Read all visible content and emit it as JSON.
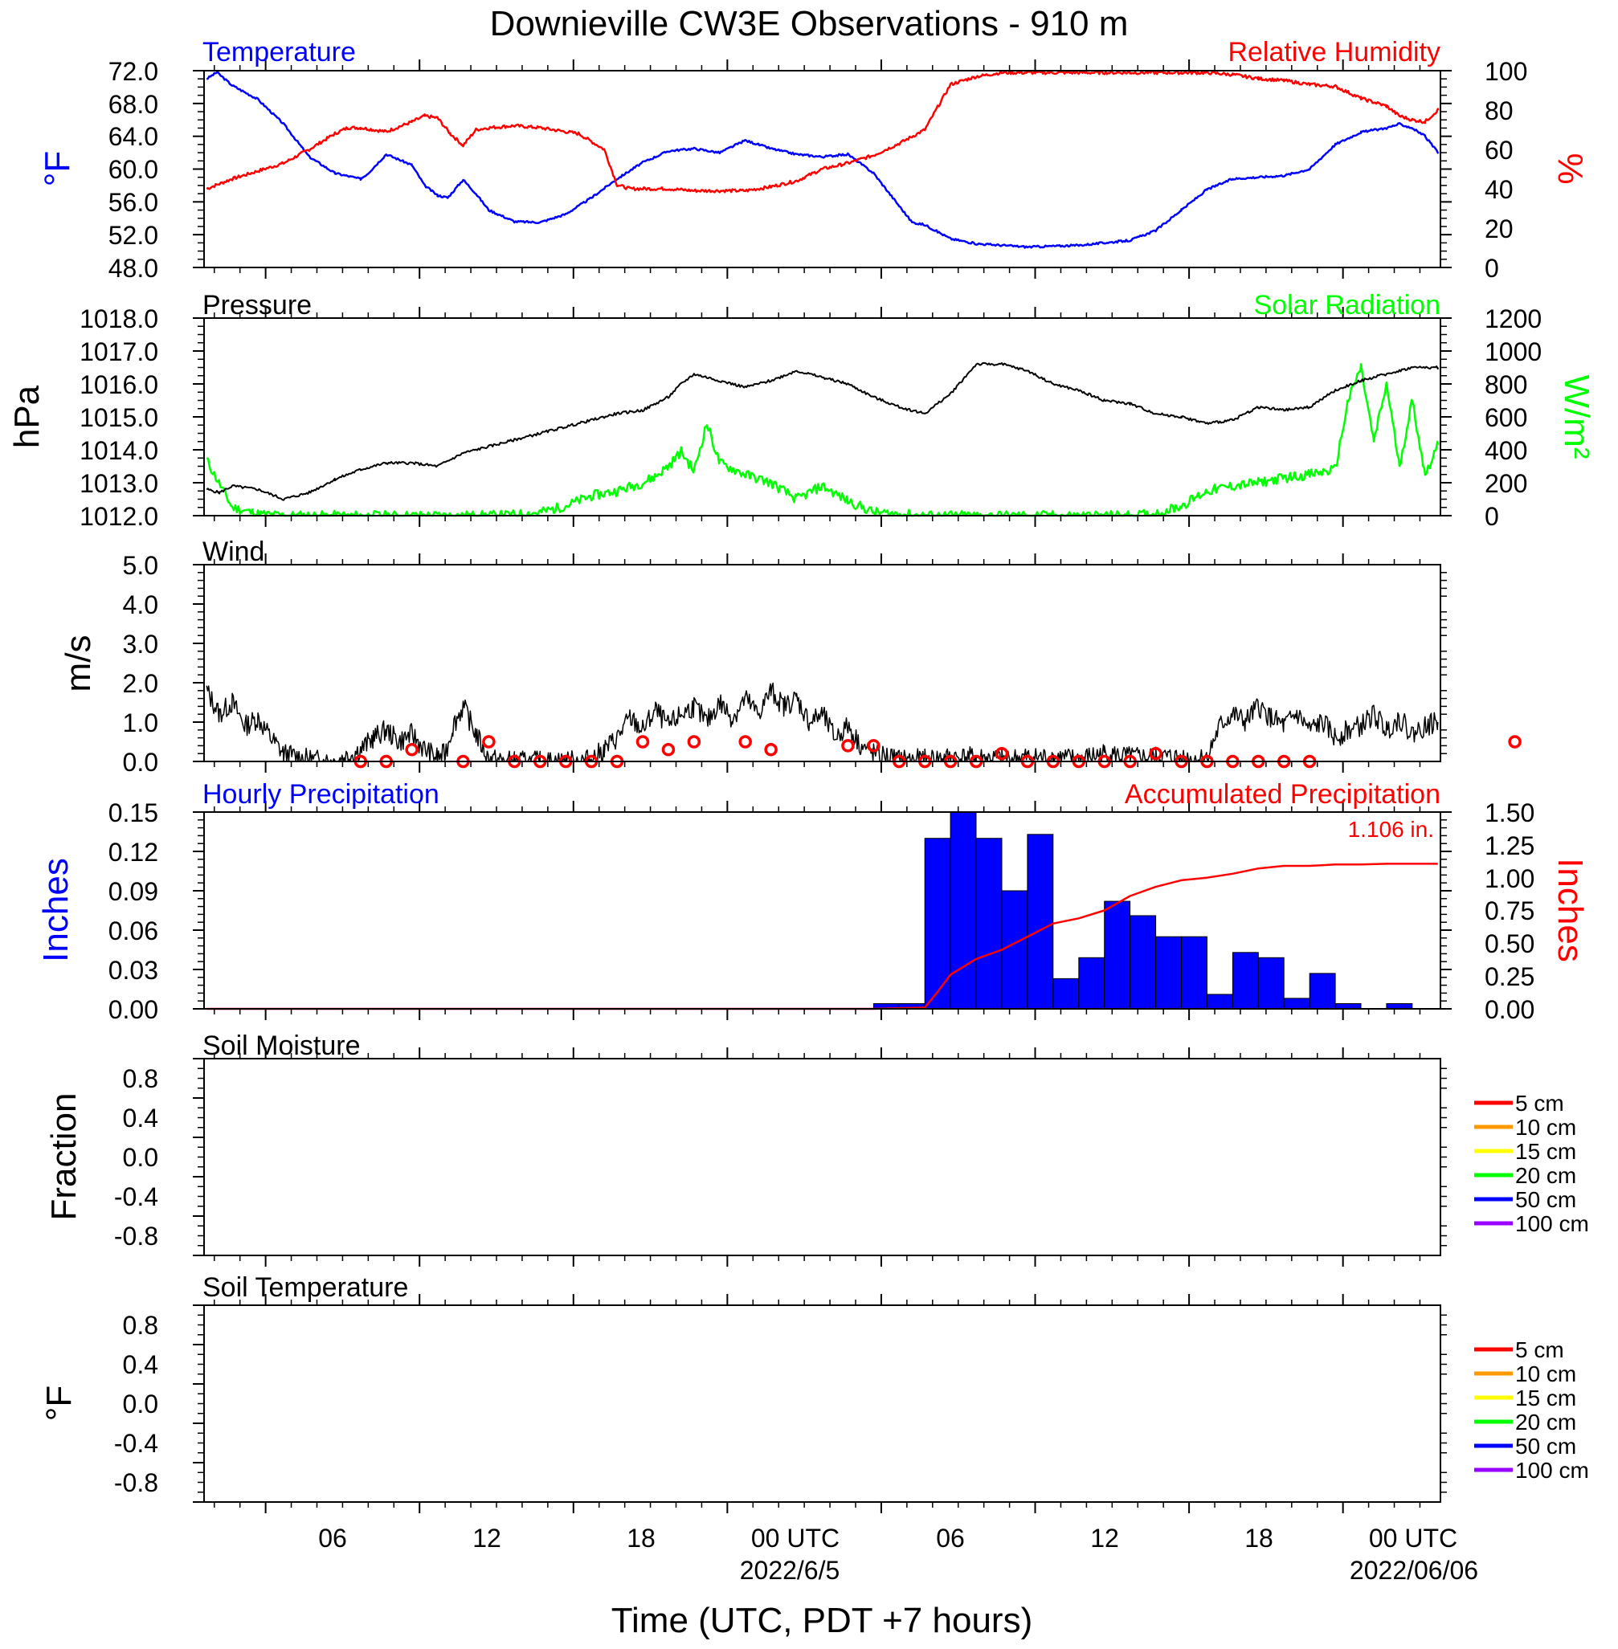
{
  "title": "Downieville CW3E Observations - 910 m",
  "xlabel": "Time (UTC, PDT +7 hours)",
  "x_ticks": [
    "06",
    "12",
    "18",
    "00 UTC",
    "06",
    "12",
    "18",
    "00 UTC"
  ],
  "x_dates": [
    "2022/6/5",
    "2022/06/06"
  ],
  "colors": {
    "temperature": "#0000ff",
    "humidity": "#ff0000",
    "pressure": "#000000",
    "solar": "#00ff00",
    "wind": "#000000",
    "wind_barb": "#ff0000",
    "precip_bar": "#0000ff",
    "accum": "#ff0000"
  },
  "soil_legend_colors": [
    "#ff0000",
    "#ff9900",
    "#ffff00",
    "#00ff00",
    "#0000ff",
    "#9900ff"
  ],
  "panels": {
    "temp": {
      "left_title": "Temperature",
      "right_title": "Relative Humidity",
      "left_unit": "°F",
      "right_unit": "%",
      "left_ticks": [
        "72.0",
        "68.0",
        "64.0",
        "60.0",
        "56.0",
        "52.0",
        "48.0"
      ],
      "right_ticks": [
        "100",
        "80",
        "60",
        "40",
        "20",
        "0"
      ]
    },
    "pressure": {
      "left_title": "Pressure",
      "right_title": "Solar Radiation",
      "left_unit": "hPa",
      "right_unit": "W/m²",
      "left_ticks": [
        "1018.0",
        "1017.0",
        "1016.0",
        "1015.0",
        "1014.0",
        "1013.0",
        "1012.0"
      ],
      "right_ticks": [
        "1200",
        "1000",
        "800",
        "600",
        "400",
        "200",
        "0"
      ]
    },
    "wind": {
      "left_title": "Wind",
      "left_unit": "m/s",
      "left_ticks": [
        "5.0",
        "4.0",
        "3.0",
        "2.0",
        "1.0",
        "0.0"
      ]
    },
    "precip": {
      "left_title": "Hourly Precipitation",
      "right_title": "Accumulated Precipitation",
      "left_unit": "Inches",
      "right_unit": "Inches",
      "annotation": "1.106 in.",
      "left_ticks": [
        "0.15",
        "0.12",
        "0.09",
        "0.06",
        "0.03",
        "0.00"
      ],
      "right_ticks": [
        "1.50",
        "1.25",
        "1.00",
        "0.75",
        "0.50",
        "0.25",
        "0.00"
      ]
    },
    "soil_moisture": {
      "left_title": "Soil Moisture",
      "left_unit": "Fraction",
      "left_ticks": [
        "0.8",
        "0.4",
        "0.0",
        "-0.4",
        "-0.8"
      ],
      "legend": [
        "5 cm",
        "10 cm",
        "15 cm",
        "20 cm",
        "50 cm",
        "100 cm"
      ]
    },
    "soil_temp": {
      "left_title": "Soil Temperature",
      "left_unit": "°F",
      "left_ticks": [
        "0.8",
        "0.4",
        "0.0",
        "-0.4",
        "-0.8"
      ],
      "legend": [
        "5 cm",
        "10 cm",
        "15 cm",
        "20 cm",
        "50 cm",
        "100 cm"
      ]
    }
  },
  "chart_data": [
    {
      "type": "line",
      "panel": "temp",
      "title": "Temperature / Relative Humidity",
      "x_unit": "hours since 2022-06-04 00 UTC",
      "xlim": [
        0,
        48
      ],
      "ylim_left": [
        48,
        72
      ],
      "ylim_right": [
        0,
        100
      ],
      "series": [
        {
          "name": "Temperature",
          "axis": "left",
          "unit": "°F",
          "x": [
            0,
            0.4,
            1,
            2,
            3,
            4,
            5,
            6,
            6.3,
            7,
            8,
            8.5,
            9,
            9.4,
            10,
            10.5,
            11,
            12,
            13,
            14,
            15,
            16,
            17,
            18,
            19,
            20,
            21,
            22,
            23,
            24,
            25,
            26,
            27,
            27.5,
            28,
            29,
            30,
            31,
            32,
            33,
            34,
            35,
            36,
            37,
            38,
            39,
            40,
            41,
            42,
            43,
            44,
            45,
            46,
            46.5,
            47,
            47.5,
            48
          ],
          "values": [
            71.0,
            71.8,
            70.2,
            68.5,
            65.5,
            61.5,
            59.5,
            58.8,
            59.5,
            61.8,
            60.5,
            58.0,
            56.8,
            56.5,
            58.7,
            57.0,
            55.0,
            53.6,
            53.5,
            54.5,
            56.5,
            58.8,
            60.8,
            62.2,
            62.5,
            62.0,
            63.5,
            62.5,
            61.8,
            61.5,
            61.8,
            59.5,
            55.5,
            53.5,
            53.2,
            51.5,
            50.9,
            50.7,
            50.5,
            50.6,
            50.7,
            51.0,
            51.3,
            52.5,
            55.0,
            57.5,
            58.8,
            59.0,
            59.2,
            60.0,
            63.0,
            64.5,
            65.0,
            65.5,
            65.0,
            64.0,
            62.0
          ]
        },
        {
          "name": "Relative Humidity",
          "axis": "right",
          "unit": "%",
          "x": [
            0,
            1,
            2,
            3,
            4,
            5,
            5.5,
            6,
            7,
            8,
            8.5,
            9,
            9.5,
            10,
            10.5,
            11,
            12,
            13,
            14,
            14.5,
            15,
            15.5,
            16,
            16.5,
            17,
            18,
            19,
            20,
            21,
            22,
            23,
            24,
            25,
            26,
            27,
            28,
            29,
            30,
            31,
            32,
            33,
            34,
            35,
            36,
            37,
            38,
            39,
            40,
            41,
            42,
            43,
            44,
            45,
            46,
            46.5,
            47,
            47.5,
            48
          ],
          "values": [
            40,
            45,
            49,
            53,
            60,
            68,
            71,
            71,
            69,
            74,
            77,
            76,
            68,
            62,
            70,
            71,
            72,
            71,
            69,
            68,
            64,
            60,
            42,
            40,
            40,
            40,
            39,
            39,
            39,
            41,
            44,
            50,
            53,
            57,
            63,
            70,
            93,
            97,
            99,
            99,
            99,
            99,
            99,
            99,
            99,
            99,
            99,
            98,
            96,
            95,
            93,
            92,
            86,
            82,
            77,
            75,
            74,
            80
          ]
        }
      ]
    },
    {
      "type": "line",
      "panel": "pressure",
      "title": "Pressure / Solar Radiation",
      "x_unit": "hours since 2022-06-04 00 UTC",
      "xlim": [
        0,
        48
      ],
      "ylim_left": [
        1012,
        1018
      ],
      "ylim_right": [
        0,
        1200
      ],
      "series": [
        {
          "name": "Pressure",
          "axis": "left",
          "unit": "hPa",
          "x": [
            0,
            0.5,
            1,
            2,
            3,
            4,
            5,
            6,
            7,
            8,
            9,
            10,
            11,
            12,
            13,
            14,
            15,
            16,
            17,
            18,
            18.5,
            19,
            20,
            21,
            22,
            23,
            24,
            25,
            26,
            27,
            28,
            29,
            30,
            31,
            32,
            33,
            34,
            35,
            36,
            37,
            38,
            39,
            40,
            41,
            42,
            43,
            44,
            45,
            46,
            47,
            48
          ],
          "values": [
            1012.8,
            1012.7,
            1012.9,
            1012.8,
            1012.5,
            1012.7,
            1013.1,
            1013.4,
            1013.6,
            1013.6,
            1013.5,
            1013.9,
            1014.1,
            1014.3,
            1014.5,
            1014.7,
            1014.9,
            1015.1,
            1015.2,
            1015.6,
            1016.0,
            1016.3,
            1016.1,
            1015.9,
            1016.1,
            1016.4,
            1016.2,
            1016.0,
            1015.6,
            1015.3,
            1015.1,
            1015.7,
            1016.6,
            1016.6,
            1016.4,
            1016.0,
            1015.8,
            1015.5,
            1015.4,
            1015.1,
            1015.0,
            1014.8,
            1014.9,
            1015.3,
            1015.2,
            1015.3,
            1015.8,
            1016.1,
            1016.3,
            1016.5,
            1016.5
          ]
        },
        {
          "name": "Solar Radiation",
          "axis": "right",
          "unit": "W/m²",
          "x": [
            0,
            0.3,
            1,
            2,
            3,
            11,
            12,
            13,
            14,
            15,
            16,
            17,
            17.5,
            18,
            18.5,
            19,
            19.5,
            20,
            21,
            22,
            23,
            24,
            25,
            26,
            28,
            36,
            37,
            38,
            39,
            40,
            41,
            42,
            43,
            44,
            44.5,
            45,
            45.5,
            46,
            46.5,
            47,
            47.5,
            48
          ],
          "values": [
            340,
            250,
            50,
            10,
            0,
            0,
            5,
            20,
            60,
            120,
            150,
            200,
            240,
            300,
            390,
            270,
            560,
            320,
            250,
            200,
            100,
            180,
            90,
            20,
            0,
            0,
            10,
            60,
            150,
            180,
            200,
            230,
            250,
            280,
            700,
            900,
            450,
            800,
            300,
            700,
            250,
            430
          ]
        }
      ]
    },
    {
      "type": "line",
      "panel": "wind",
      "title": "Wind",
      "x_unit": "hours since 2022-06-04 00 UTC",
      "xlim": [
        0,
        48
      ],
      "ylim": [
        0,
        5
      ],
      "series": [
        {
          "name": "Wind Speed",
          "unit": "m/s",
          "x": [
            0,
            0.5,
            1,
            1.5,
            2,
            2.5,
            3,
            4,
            5,
            6,
            6.5,
            7,
            7.5,
            8,
            8.5,
            9,
            9.3,
            9.6,
            10,
            10.5,
            11,
            12,
            13,
            14,
            15,
            15.5,
            16,
            16.5,
            17,
            17.5,
            18,
            18.5,
            19,
            19.5,
            20,
            20.5,
            21,
            21.5,
            22,
            22.5,
            23,
            23.5,
            24,
            24.5,
            25,
            25.5,
            26,
            27,
            28,
            29,
            30,
            31,
            32,
            33,
            34,
            35,
            36,
            37,
            38,
            38.5,
            39,
            39.5,
            40,
            40.5,
            41,
            41.5,
            42,
            42.5,
            43,
            43.5,
            44,
            44.5,
            45,
            45.5,
            46,
            46.5,
            47,
            47.5,
            48
          ],
          "values": [
            1.8,
            1.2,
            1.5,
            0.9,
            1.1,
            0.6,
            0.2,
            0.05,
            0,
            0.3,
            0.6,
            0.8,
            0.5,
            0.7,
            0.3,
            0.1,
            0.2,
            0.9,
            1.4,
            0.7,
            0.05,
            0,
            0,
            0,
            0.05,
            0.3,
            0.6,
            1.1,
            0.8,
            1.3,
            0.9,
            1.2,
            1.4,
            1.0,
            1.5,
            1.1,
            1.6,
            1.2,
            1.8,
            1.4,
            1.6,
            1.0,
            1.2,
            0.6,
            0.9,
            0.4,
            0.2,
            0.05,
            0.05,
            0.1,
            0.1,
            0.05,
            0.1,
            0.1,
            0.05,
            0.2,
            0.1,
            0.1,
            0.1,
            0.05,
            0.1,
            0.9,
            1.2,
            1.0,
            1.4,
            1.1,
            0.9,
            1.2,
            0.8,
            1.0,
            0.6,
            0.8,
            0.9,
            1.2,
            0.8,
            1.1,
            0.7,
            0.9,
            1.0
          ]
        }
      ],
      "barb_speeds": [
        null,
        null,
        0,
        0,
        0.3,
        null,
        0,
        0.5,
        0,
        0,
        0,
        0,
        0,
        0.5,
        0.3,
        0.5,
        null,
        0.5,
        0.3,
        null,
        null,
        0.4,
        0.4,
        0,
        0,
        0,
        0,
        0.2,
        0,
        0,
        0,
        0,
        0,
        0.2,
        0,
        0,
        0,
        0,
        0,
        0,
        null,
        null,
        null,
        null,
        null,
        null,
        null,
        0.5
      ]
    },
    {
      "type": "bar",
      "panel": "precip",
      "title": "Hourly Precipitation / Accumulated Precipitation",
      "x_unit": "hours since 2022-06-04 00 UTC",
      "xlim": [
        0,
        48
      ],
      "ylim_left": [
        0,
        0.15
      ],
      "ylim_right": [
        0,
        1.5
      ],
      "series": [
        {
          "name": "Hourly Precipitation",
          "axis": "left",
          "unit": "Inches",
          "x": [
            26,
            27,
            28,
            29,
            30,
            31,
            32,
            33,
            34,
            35,
            36,
            37,
            38,
            39,
            40,
            41,
            42,
            43,
            44,
            45,
            46,
            47
          ],
          "values": [
            0.004,
            0.004,
            0.13,
            0.15,
            0.13,
            0.09,
            0.133,
            0.023,
            0.039,
            0.082,
            0.071,
            0.055,
            0.055,
            0.011,
            0.043,
            0.039,
            0.008,
            0.027,
            0.004,
            0,
            0.004,
            0
          ]
        },
        {
          "name": "Accumulated Precipitation",
          "axis": "right",
          "unit": "Inches",
          "type": "line",
          "x": [
            0,
            26,
            28,
            28.5,
            29,
            30,
            31,
            32,
            33,
            34,
            35,
            36,
            37,
            38,
            39,
            40,
            41,
            42,
            43,
            44,
            45,
            46,
            47,
            48
          ],
          "values": [
            0,
            0,
            0.01,
            0.13,
            0.26,
            0.38,
            0.45,
            0.55,
            0.65,
            0.69,
            0.75,
            0.86,
            0.93,
            0.98,
            1.0,
            1.03,
            1.07,
            1.09,
            1.09,
            1.1,
            1.1,
            1.106,
            1.106,
            1.106
          ]
        }
      ]
    },
    {
      "type": "line",
      "panel": "soil_moisture",
      "title": "Soil Moisture",
      "ylim": [
        -1,
        1
      ],
      "series": []
    },
    {
      "type": "line",
      "panel": "soil_temp",
      "title": "Soil Temperature",
      "ylim": [
        -1,
        1
      ],
      "series": []
    }
  ]
}
